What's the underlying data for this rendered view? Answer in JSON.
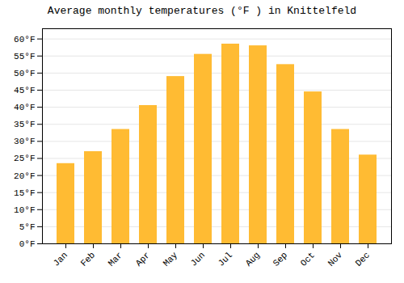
{
  "chart_data": {
    "type": "bar",
    "title": "Average monthly temperatures (°F ) in Knittelfeld",
    "categories": [
      "Jan",
      "Feb",
      "Mar",
      "Apr",
      "May",
      "Jun",
      "Jul",
      "Aug",
      "Sep",
      "Oct",
      "Nov",
      "Dec"
    ],
    "values": [
      23.5,
      27.0,
      33.5,
      40.5,
      49.0,
      55.5,
      58.5,
      58.0,
      52.5,
      44.5,
      33.5,
      26.0
    ],
    "color": "#FFBB33",
    "ylim": [
      0,
      63
    ],
    "yticks": [
      {
        "value": 0,
        "label": "0°F"
      },
      {
        "value": 5,
        "label": "5°F"
      },
      {
        "value": 10,
        "label": "10°F"
      },
      {
        "value": 15,
        "label": "15°F"
      },
      {
        "value": 20,
        "label": "20°F"
      },
      {
        "value": 25,
        "label": "25°F"
      },
      {
        "value": 30,
        "label": "30°F"
      },
      {
        "value": 35,
        "label": "35°F"
      },
      {
        "value": 40,
        "label": "40°F"
      },
      {
        "value": 45,
        "label": "45°F"
      },
      {
        "value": 50,
        "label": "50°F"
      },
      {
        "value": 55,
        "label": "55°F"
      },
      {
        "value": 60,
        "label": "60°F"
      }
    ],
    "grid": true
  }
}
